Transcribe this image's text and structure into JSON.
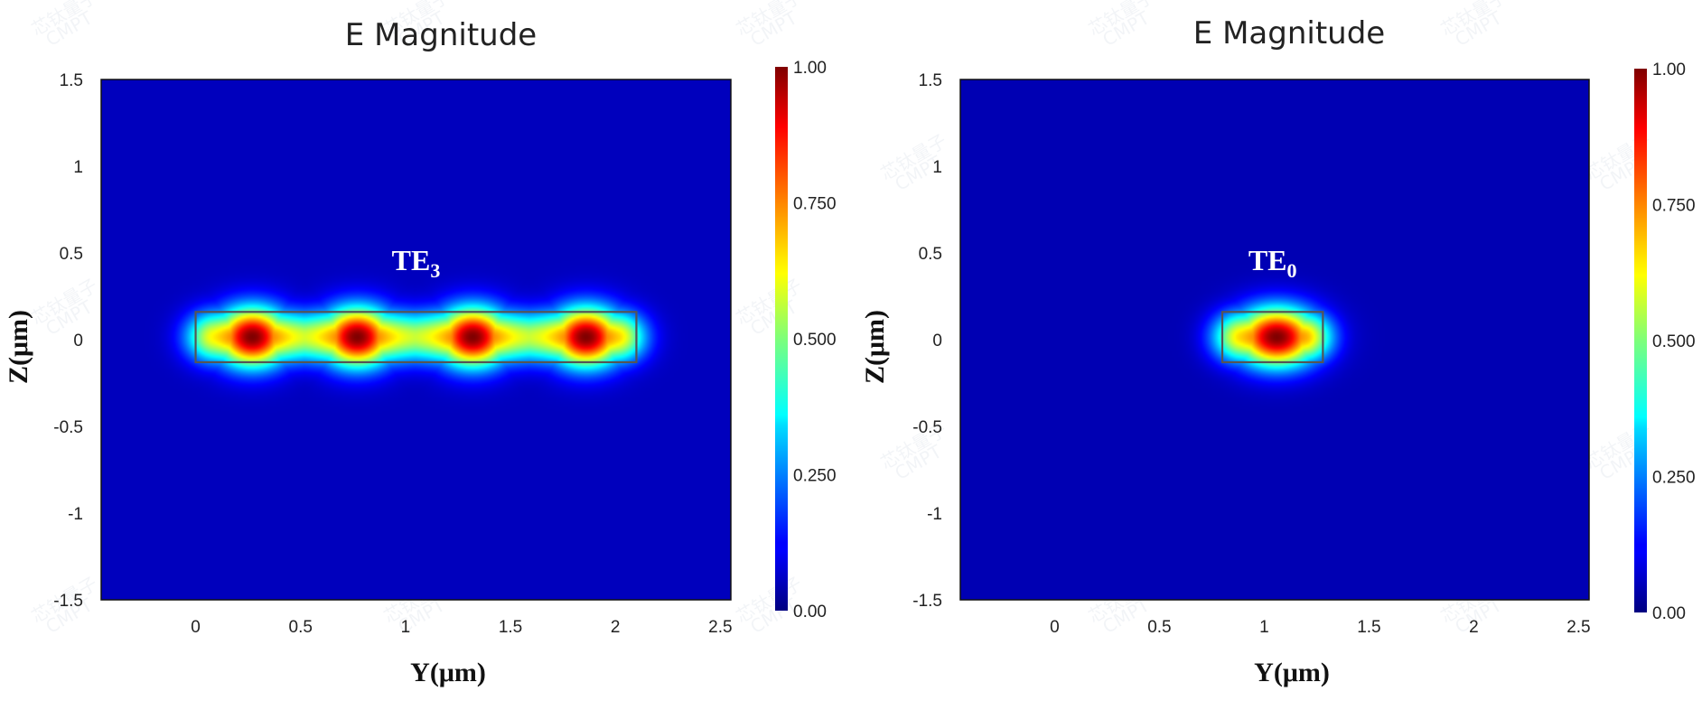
{
  "chart_data": [
    {
      "type": "heatmap",
      "title": "E Magnitude",
      "xlabel": "Y(μm)",
      "ylabel": "Z(μm)",
      "xlim": [
        -0.45,
        2.55
      ],
      "ylim": [
        -1.5,
        1.5
      ],
      "x_ticks": [
        "0",
        "0.5",
        "1",
        "1.5",
        "2",
        "2.5"
      ],
      "y_ticks": [
        "1.5",
        "1",
        "0.5",
        "0",
        "-0.5",
        "-1",
        "-1.5"
      ],
      "colorbar": {
        "min": 0,
        "max": 1,
        "ticks": [
          "1.00",
          "0.750",
          "0.500",
          "0.250",
          "0.00"
        ],
        "colormap": "jet"
      },
      "annotation": {
        "label": "TE",
        "subscript": "3",
        "x": 1.05,
        "y": 0.4
      },
      "waveguide": {
        "y_range": [
          0.0,
          2.1
        ],
        "z_range": [
          -0.13,
          0.16
        ]
      },
      "lobes": [
        0.27,
        0.77,
        1.32,
        1.86
      ],
      "background_value": 0.06
    },
    {
      "type": "heatmap",
      "title": "E Magnitude",
      "xlabel": "Y(μm)",
      "ylabel": "Z(μm)",
      "xlim": [
        -0.45,
        2.55
      ],
      "ylim": [
        -1.5,
        1.5
      ],
      "x_ticks": [
        "0",
        "0.5",
        "1",
        "1.5",
        "2",
        "2.5"
      ],
      "y_ticks": [
        "1.5",
        "1",
        "0.5",
        "0",
        "-0.5",
        "-1",
        "-1.5"
      ],
      "colorbar": {
        "min": 0,
        "max": 1,
        "ticks": [
          "1.00",
          "0.750",
          "0.500",
          "0.250",
          "0.00"
        ],
        "colormap": "jet"
      },
      "annotation": {
        "label": "TE",
        "subscript": "0",
        "x": 1.04,
        "y": 0.4
      },
      "waveguide": {
        "y_range": [
          0.8,
          1.28
        ],
        "z_range": [
          -0.13,
          0.16
        ]
      },
      "lobes": [
        1.06
      ],
      "background_value": 0.05
    }
  ],
  "watermark": {
    "text": "芯钛量子",
    "subtext": "CMPT"
  }
}
